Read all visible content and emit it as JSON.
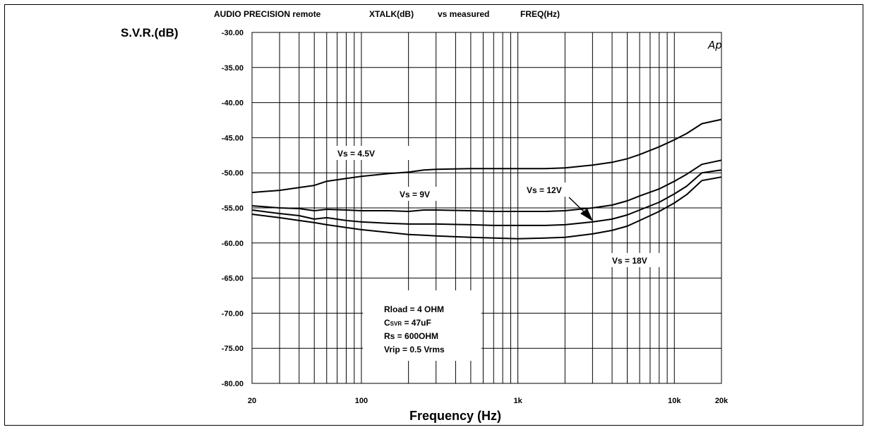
{
  "header": {
    "source": "AUDIO PRECISION remote",
    "measure": "XTALK(dB)",
    "vs": "vs measured",
    "sweep": "FREQ(Hz)"
  },
  "badge": "Ap",
  "notes": {
    "line1": "Rload = 4 OHM",
    "line2_prefix": "C",
    "line2_sub": "SVR",
    "line2_rest": " =  47uF",
    "line3": "Rs = 600OHM",
    "line4": "Vrip = 0.5 Vrms"
  },
  "chart_data": {
    "type": "line",
    "ylabel": "S.V.R.(dB)",
    "xlabel": "Frequency (Hz)",
    "xscale": "log",
    "xlim": [
      20,
      20000
    ],
    "ylim": [
      -80,
      -30
    ],
    "grid": true,
    "xticks": [
      {
        "value": 20,
        "label": "20"
      },
      {
        "value": 100,
        "label": "100"
      },
      {
        "value": 1000,
        "label": "1k"
      },
      {
        "value": 10000,
        "label": "10k"
      },
      {
        "value": 20000,
        "label": "20k"
      }
    ],
    "yticks": [
      {
        "value": -30,
        "label": "-30.00"
      },
      {
        "value": -35,
        "label": "-35.00"
      },
      {
        "value": -40,
        "label": "-40.00"
      },
      {
        "value": -45,
        "label": "-45.00"
      },
      {
        "value": -50,
        "label": "-50.00"
      },
      {
        "value": -55,
        "label": "-55.00"
      },
      {
        "value": -60,
        "label": "-60.00"
      },
      {
        "value": -65,
        "label": "-65.00"
      },
      {
        "value": -70,
        "label": "-70.00"
      },
      {
        "value": -75,
        "label": "-75.00"
      },
      {
        "value": -80,
        "label": "-80.00"
      }
    ],
    "series": [
      {
        "name": "Vs = 4.5V",
        "x": [
          20,
          30,
          40,
          50,
          60,
          80,
          100,
          150,
          200,
          250,
          300,
          500,
          700,
          1000,
          1500,
          2000,
          3000,
          4000,
          5000,
          6000,
          8000,
          10000,
          12000,
          15000,
          20000
        ],
        "y": [
          -52.8,
          -52.5,
          -52.1,
          -51.8,
          -51.2,
          -50.8,
          -50.5,
          -50.1,
          -49.9,
          -49.6,
          -49.5,
          -49.4,
          -49.4,
          -49.4,
          -49.4,
          -49.3,
          -48.9,
          -48.5,
          -48.0,
          -47.4,
          -46.3,
          -45.3,
          -44.4,
          -43.0,
          -42.4
        ]
      },
      {
        "name": "Vs = 9V",
        "x": [
          20,
          30,
          40,
          50,
          60,
          80,
          100,
          150,
          200,
          250,
          300,
          500,
          700,
          1000,
          1500,
          2000,
          3000,
          4000,
          5000,
          6000,
          8000,
          10000,
          12000,
          15000,
          20000
        ],
        "y": [
          -54.7,
          -55.0,
          -55.1,
          -55.4,
          -55.2,
          -55.3,
          -55.4,
          -55.4,
          -55.5,
          -55.3,
          -55.3,
          -55.4,
          -55.5,
          -55.5,
          -55.5,
          -55.4,
          -55.0,
          -54.6,
          -54.0,
          -53.3,
          -52.3,
          -51.2,
          -50.2,
          -48.8,
          -48.2
        ]
      },
      {
        "name": "Vs = 12V",
        "x": [
          20,
          30,
          40,
          50,
          60,
          80,
          100,
          150,
          200,
          250,
          300,
          500,
          700,
          1000,
          1500,
          2000,
          3000,
          4000,
          5000,
          6000,
          8000,
          10000,
          12000,
          15000,
          20000
        ],
        "y": [
          -55.3,
          -55.8,
          -56.1,
          -56.6,
          -56.4,
          -56.8,
          -57.0,
          -57.2,
          -57.3,
          -57.3,
          -57.3,
          -57.4,
          -57.5,
          -57.5,
          -57.5,
          -57.4,
          -57.0,
          -56.6,
          -56.0,
          -55.3,
          -54.2,
          -53.0,
          -51.9,
          -50.0,
          -49.6
        ]
      },
      {
        "name": "Vs = 18V",
        "x": [
          20,
          30,
          40,
          50,
          60,
          80,
          100,
          150,
          200,
          250,
          300,
          500,
          700,
          1000,
          1500,
          2000,
          3000,
          4000,
          5000,
          6000,
          8000,
          10000,
          12000,
          15000,
          20000
        ],
        "y": [
          -55.9,
          -56.4,
          -56.8,
          -57.1,
          -57.4,
          -57.8,
          -58.1,
          -58.5,
          -58.8,
          -58.9,
          -59.0,
          -59.2,
          -59.3,
          -59.4,
          -59.3,
          -59.2,
          -58.7,
          -58.2,
          -57.6,
          -56.8,
          -55.5,
          -54.3,
          -53.1,
          -51.1,
          -50.6
        ]
      }
    ]
  }
}
